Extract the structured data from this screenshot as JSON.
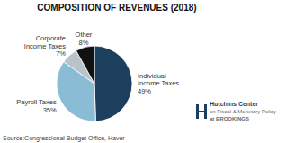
{
  "chart_data": {
    "type": "pie",
    "title": "COMPOSITION OF REVENUES (2018)",
    "categories": [
      "Individual\nIncome Taxes",
      "Payroll Taxes",
      "Corporate\nIncome Taxes",
      "Other"
    ],
    "values": [
      49,
      35,
      7,
      8
    ],
    "value_labels": [
      "49%",
      "35%",
      "7%",
      "8%"
    ],
    "data_labels": true,
    "colors": [
      "#1c3f5e",
      "#8bbcd6",
      "#b8c4cc",
      "#111111"
    ],
    "annotations": [
      "Source:Congressional Budget Office, Haver",
      "Hutchins Center",
      "on Fiscal & Monetary Policy",
      "at BROOKINGS"
    ]
  }
}
